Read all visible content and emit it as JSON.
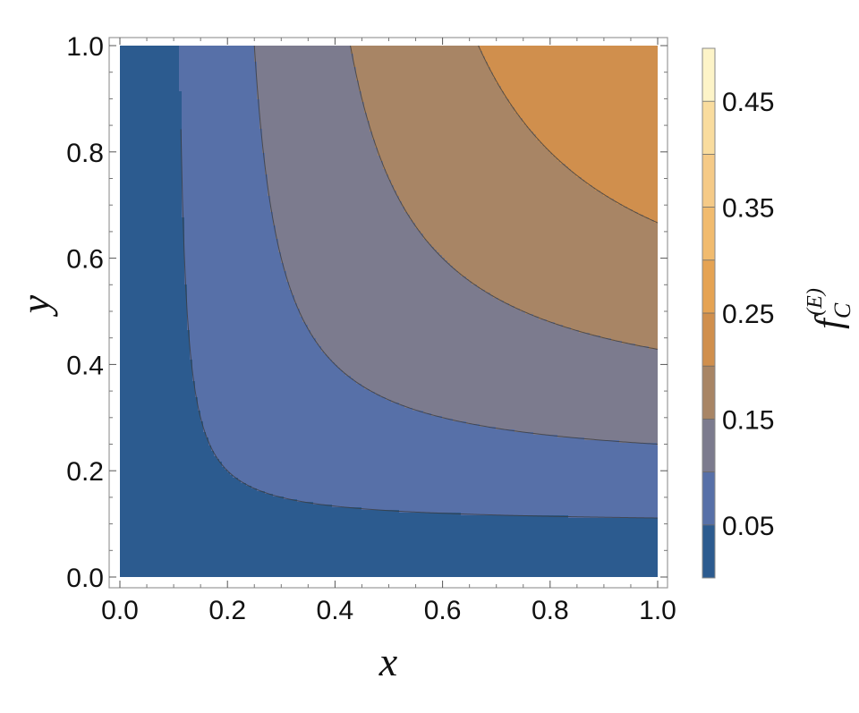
{
  "chart_data": {
    "type": "contour",
    "xlabel": "x",
    "ylabel": "y",
    "xlim": [
      0,
      1
    ],
    "ylim": [
      0,
      1
    ],
    "xticks": [
      "0.0",
      "0.2",
      "0.4",
      "0.6",
      "0.8",
      "1.0"
    ],
    "yticks": [
      "0.0",
      "0.2",
      "0.4",
      "0.6",
      "0.8",
      "1.0"
    ],
    "contour_levels": [
      0.05,
      0.1,
      0.15,
      0.2,
      0.25,
      0.3,
      0.35,
      0.4,
      0.45
    ],
    "colorbar": {
      "label_main": "f",
      "label_sub": "C",
      "label_sup": "(E)",
      "range": [
        0,
        0.5
      ],
      "tick_labels": [
        "0.05",
        "0.15",
        "0.25",
        "0.35",
        "0.45"
      ],
      "tick_values": [
        0.05,
        0.15,
        0.25,
        0.35,
        0.45
      ],
      "band_colors": [
        "#2c5b8f",
        "#5770a8",
        "#7c7b8e",
        "#a88565",
        "#d08f4d",
        "#e5a353",
        "#f1bb6e",
        "#f5ca87",
        "#f9dc9e",
        "#fdf4c8"
      ]
    }
  }
}
